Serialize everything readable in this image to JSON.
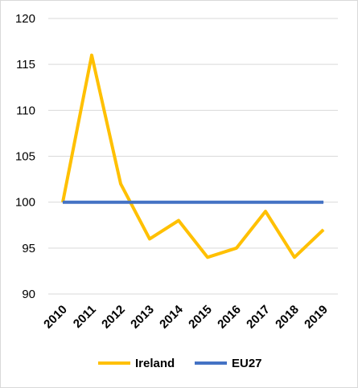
{
  "chart_data": {
    "type": "line",
    "categories": [
      "2010",
      "2011",
      "2012",
      "2013",
      "2014",
      "2015",
      "2016",
      "2017",
      "2018",
      "2019"
    ],
    "series": [
      {
        "name": "Ireland",
        "color": "#FFC000",
        "values": [
          100,
          116,
          102,
          96,
          98,
          94,
          95,
          99,
          94,
          97
        ]
      },
      {
        "name": "EU27",
        "color": "#4472C4",
        "values": [
          100,
          100,
          100,
          100,
          100,
          100,
          100,
          100,
          100,
          100
        ]
      }
    ],
    "yticks": [
      "90",
      "95",
      "100",
      "105",
      "110",
      "115",
      "120"
    ],
    "ylim": [
      90,
      120
    ],
    "grid": true,
    "legend": "bottom",
    "gridline_color": "#d9d9d9"
  }
}
